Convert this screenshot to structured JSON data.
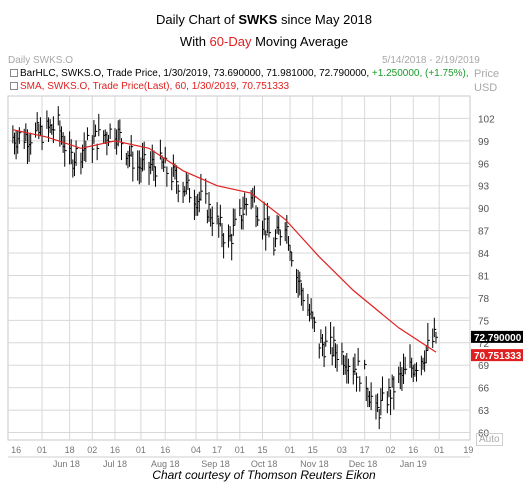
{
  "title": {
    "line1_pre": "Daily Chart of ",
    "line1_ticker": "SWKS",
    "line1_post": " since May 2018",
    "line2_pre": "With ",
    "line2_period": "60-Day",
    "line2_post": " Moving Average"
  },
  "panel": {
    "name": "Daily SWKS.O",
    "date_range": "5/14/2018 - 2/19/2019",
    "axis_name": "Price",
    "currency": "USD",
    "auto_label": "Auto"
  },
  "legend": {
    "bar_label": "BarHLC, SWKS.O, Trade Price, 1/30/2019, 73.690000, 71.981000, 72.790000, ",
    "bar_change": "+1.250000, (+1.75%),",
    "sma_label": "SMA, SWKS.O, Trade Price(Last), 60, 1/30/2019, 70.751333"
  },
  "last_price_tag": "72.790000",
  "sma_tag": "70.751333",
  "caption": "Chart courtesy of Thomson Reuters Eikon",
  "colors": {
    "price_bars": "#000000",
    "sma": "#e02020",
    "last_tag_bg": "#000000",
    "sma_tag_bg": "#e02020",
    "grid": "#d8d8d8",
    "green_change": "#1a9a2a"
  },
  "chart_data": {
    "type": "line",
    "title": "Daily Chart of SWKS since May 2018",
    "subtitle": "With 60-Day Moving Average",
    "xlabel": "",
    "ylabel": "Price",
    "ylim": [
      59,
      105
    ],
    "y_ticks": [
      60,
      63,
      66,
      69,
      72,
      75,
      78,
      81,
      84,
      87,
      90,
      93,
      96,
      99,
      102
    ],
    "x_day_ticks": [
      "16",
      "01",
      "18",
      "02",
      "16",
      "01",
      "16",
      "04",
      "17",
      "01",
      "15",
      "01",
      "15",
      "03",
      "17",
      "02",
      "16",
      "01",
      "19"
    ],
    "x_month_labels": [
      "Jun 18",
      "Jul 18",
      "Aug 18",
      "Sep 18",
      "Oct 18",
      "Nov 18",
      "Dec 18",
      "Jan 19"
    ],
    "grid": true,
    "series": [
      {
        "name": "SWKS.O",
        "style": "hlc-bars",
        "dates": [
          "2018-05-14",
          "2018-05-28",
          "2018-06-11",
          "2018-06-18",
          "2018-07-02",
          "2018-07-16",
          "2018-07-30",
          "2018-08-13",
          "2018-08-27",
          "2018-09-10",
          "2018-09-24",
          "2018-10-08",
          "2018-10-22",
          "2018-10-29",
          "2018-11-05",
          "2018-11-19",
          "2018-12-03",
          "2018-12-17",
          "2018-12-24",
          "2019-01-07",
          "2019-01-21",
          "2019-01-30"
        ],
        "values": [
          99.5,
          99.8,
          101.0,
          96.5,
          99.0,
          100.5,
          95.5,
          95.8,
          93.0,
          90.5,
          85.5,
          92.0,
          85.0,
          88.5,
          81.0,
          72.0,
          70.5,
          67.5,
          62.5,
          67.0,
          70.0,
          72.79
        ]
      },
      {
        "name": "SMA 60",
        "style": "line",
        "dates": [
          "2018-05-14",
          "2018-06-04",
          "2018-06-25",
          "2018-07-16",
          "2018-08-06",
          "2018-08-27",
          "2018-09-17",
          "2018-10-08",
          "2018-10-29",
          "2018-11-19",
          "2018-12-10",
          "2019-01-07",
          "2019-01-30"
        ],
        "values": [
          100.5,
          99.5,
          98.0,
          99.0,
          98.0,
          95.0,
          93.0,
          92.0,
          88.5,
          83.5,
          79.0,
          74.0,
          70.75
        ]
      }
    ]
  }
}
